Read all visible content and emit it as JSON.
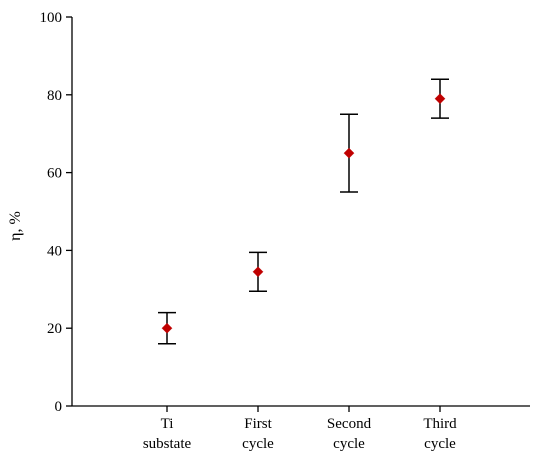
{
  "chart_data": {
    "type": "scatter",
    "title": "",
    "xlabel": "",
    "ylabel": "η, %",
    "ylim": [
      0,
      100
    ],
    "yticks": [
      0,
      20,
      40,
      60,
      80,
      100
    ],
    "grid": false,
    "legend": "none",
    "categories": [
      [
        "Ti",
        "substate"
      ],
      [
        "First",
        "cycle"
      ],
      [
        "Second",
        "cycle"
      ],
      [
        "Third",
        "cycle"
      ]
    ],
    "series": [
      {
        "values": [
          20,
          34.5,
          65,
          79
        ],
        "error_low": [
          16,
          29.5,
          55,
          74
        ],
        "error_high": [
          24,
          39.5,
          75,
          84
        ],
        "marker": "diamond",
        "color": "#c00000"
      }
    ]
  }
}
